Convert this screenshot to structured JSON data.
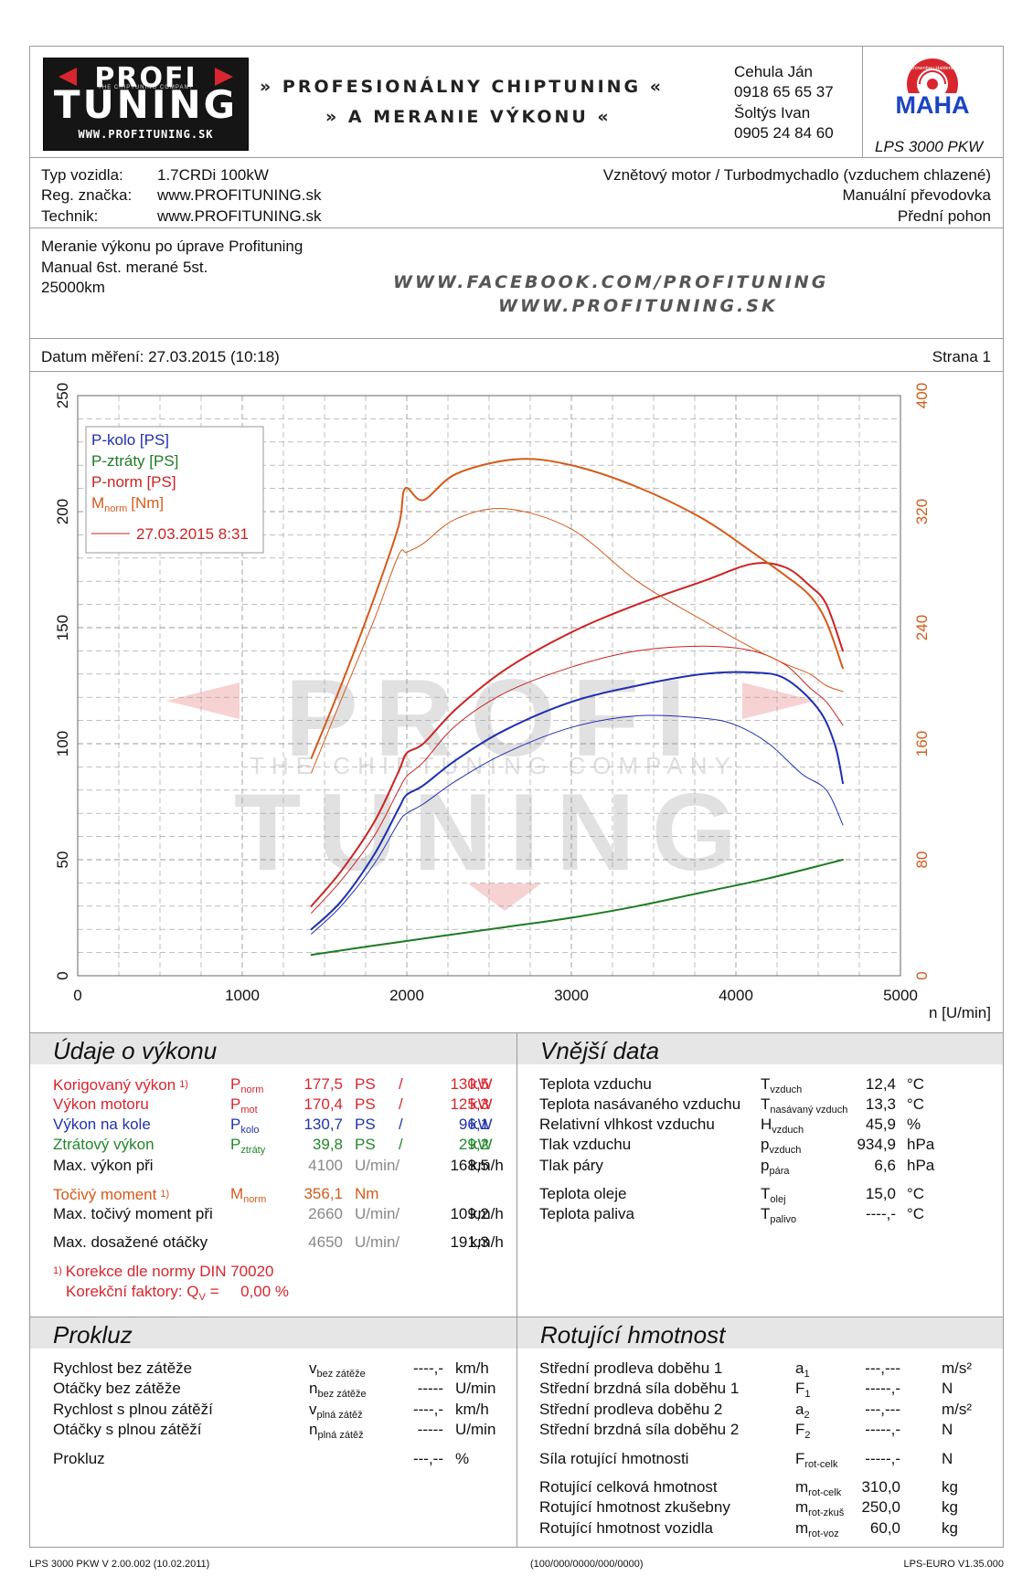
{
  "header": {
    "logo": {
      "line1": "PROFI",
      "line2": "TUNING",
      "tagline": "THE CHIPTUNING COMPANY",
      "url": "WWW.PROFITUNING.SK"
    },
    "slogan_line1": "» PROFESIONÁLNY CHIPTUNING «",
    "slogan_line2": "» A MERANIE VÝKONU «",
    "contacts": [
      "Cehula Ján",
      "0918 65 65 37",
      "Šoltýs Ivan",
      "0905 24 84 60"
    ],
    "maha": {
      "ring_text": "Maschinenbau Haldenwang",
      "brand": "MAHA",
      "model": "LPS 3000 PKW"
    }
  },
  "vehicle": {
    "labels": [
      "Typ vozidla:",
      "Reg. značka:",
      "Technik:"
    ],
    "values": [
      "1.7CRDi 100kW",
      "www.PROFITUNING.sk",
      "www.PROFITUNING.sk"
    ],
    "right": [
      "Vznětový motor / Turbodmychadlo (vzduchem chlazené)",
      "Manuální převodovka",
      "Přední pohon"
    ]
  },
  "notes": {
    "lines": [
      "Meranie výkonu po úprave Profituning",
      "Manual 6st. merané 5st.",
      "25000km"
    ],
    "links": [
      "WWW.FACEBOOK.COM/PROFITUNING",
      "WWW.PROFITUNING.SK"
    ]
  },
  "date_row": {
    "date": "Datum měření: 27.03.2015 (10:18)",
    "page": "Strana 1"
  },
  "colors": {
    "blue": "#1f2fb0",
    "red": "#cc2222",
    "green": "#1f7a22",
    "orange": "#d45a1a",
    "grid": "#888888"
  },
  "chart_data": {
    "type": "line",
    "xlabel": "n [U/min]",
    "xlim": [
      0,
      5000
    ],
    "xticks": [
      0,
      1000,
      2000,
      3000,
      4000,
      5000
    ],
    "ylim_left": [
      0,
      250
    ],
    "yticks_left": [
      0,
      50,
      100,
      150,
      200,
      250
    ],
    "ylim_right": [
      0,
      400
    ],
    "yticks_right": [
      0,
      80,
      160,
      240,
      320,
      400
    ],
    "legend": {
      "position": "top-left",
      "entries": [
        "P-kolo [PS]",
        "P-ztráty [PS]",
        "P-norm [PS]",
        "M",
        "27.03.2015 8:31"
      ],
      "mnorm_sub": "norm",
      "mnorm_unit": "[Nm]"
    },
    "watermark": {
      "line1": "PROFI",
      "line2": "THE CHIPTUNING COMPANY",
      "line3": "TUNING"
    },
    "series": [
      {
        "name": "P-kolo [PS]",
        "axis": "left",
        "color": "#1f2fb0",
        "width": 2,
        "x": [
          1420,
          1600,
          1800,
          1950,
          2000,
          2100,
          2300,
          2600,
          3000,
          3400,
          3800,
          4100,
          4300,
          4500,
          4600,
          4650
        ],
        "y": [
          20,
          32,
          52,
          72,
          78,
          82,
          93,
          106,
          118,
          125,
          130,
          130.7,
          128,
          115,
          100,
          83
        ]
      },
      {
        "name": "P-kolo baseline",
        "axis": "left",
        "color": "#1f2fb0",
        "width": 1,
        "x": [
          1420,
          1600,
          1800,
          1950,
          2000,
          2100,
          2300,
          2600,
          3000,
          3400,
          3800,
          4000,
          4200,
          4400,
          4550,
          4650
        ],
        "y": [
          18,
          30,
          48,
          66,
          70,
          74,
          84,
          96,
          107,
          112,
          111,
          108,
          100,
          87,
          80,
          65
        ]
      },
      {
        "name": "P-ztráty [PS]",
        "axis": "left",
        "color": "#1f7a22",
        "width": 2,
        "x": [
          1420,
          1800,
          2200,
          2600,
          3000,
          3400,
          3800,
          4200,
          4650
        ],
        "y": [
          9,
          13,
          17,
          21,
          25,
          30,
          36,
          42,
          50
        ]
      },
      {
        "name": "P-norm [PS]",
        "axis": "left",
        "color": "#cc2222",
        "width": 2,
        "x": [
          1420,
          1600,
          1800,
          1950,
          2000,
          2100,
          2300,
          2600,
          3000,
          3400,
          3800,
          4100,
          4300,
          4450,
          4550,
          4650
        ],
        "y": [
          30,
          45,
          66,
          88,
          96,
          100,
          115,
          132,
          148,
          160,
          170,
          177.5,
          176,
          168,
          160,
          140
        ]
      },
      {
        "name": "P-norm baseline",
        "axis": "left",
        "color": "#cc2222",
        "width": 1,
        "x": [
          1420,
          1600,
          1800,
          1950,
          2000,
          2100,
          2300,
          2600,
          3000,
          3400,
          3800,
          4100,
          4300,
          4450,
          4550,
          4650
        ],
        "y": [
          27,
          41,
          60,
          80,
          86,
          92,
          108,
          122,
          133,
          140,
          142,
          140,
          134,
          124,
          118,
          108
        ]
      },
      {
        "name": "M norm [Nm]",
        "axis": "right",
        "color": "#d45a1a",
        "width": 2,
        "x": [
          1420,
          1600,
          1800,
          1950,
          1990,
          2100,
          2300,
          2660,
          3000,
          3400,
          3800,
          4100,
          4300,
          4450,
          4550,
          4650
        ],
        "y": [
          150,
          200,
          260,
          310,
          336,
          328,
          346,
          356.1,
          352,
          337,
          315,
          292,
          276,
          262,
          244,
          212
        ]
      },
      {
        "name": "M norm baseline",
        "axis": "right",
        "color": "#d45a1a",
        "width": 1,
        "x": [
          1420,
          1600,
          1800,
          1950,
          2000,
          2100,
          2300,
          2600,
          3000,
          3400,
          3800,
          4100,
          4300,
          4450,
          4550,
          4650
        ],
        "y": [
          140,
          190,
          245,
          290,
          292,
          298,
          315,
          322,
          308,
          272,
          245,
          226,
          215,
          208,
          200,
          196
        ]
      }
    ]
  },
  "power": {
    "title": "Údaje o výkonu",
    "rows": [
      {
        "label": "Korigovaný výkon",
        "note": "1)",
        "sym": "P",
        "sub": "norm",
        "v1": "177,5",
        "u1": "PS",
        "sep": "/",
        "v2": "130,5",
        "u2": "kW",
        "cls": "red"
      },
      {
        "label": "Výkon motoru",
        "note": "",
        "sym": "P",
        "sub": "mot",
        "v1": "170,4",
        "u1": "PS",
        "sep": "/",
        "v2": "125,3",
        "u2": "kW",
        "cls": "red"
      },
      {
        "label": "Výkon na kole",
        "note": "",
        "sym": "P",
        "sub": "kolo",
        "v1": "130,7",
        "u1": "PS",
        "sep": "/",
        "v2": "96,1",
        "u2": "kW",
        "cls": "blue"
      },
      {
        "label": "Ztrátový výkon",
        "note": "",
        "sym": "P",
        "sub": "ztráty",
        "v1": "39,8",
        "u1": "PS",
        "sep": "/",
        "v2": "29,2",
        "u2": "kW",
        "cls": "green"
      }
    ],
    "max_power": {
      "label": "Max. výkon při",
      "rpm": "4100",
      "unit": "U/min/",
      "speed": "168,5",
      "speed_unit": "km/h"
    },
    "torque": {
      "label": "Točivý moment",
      "note": "1)",
      "sym": "M",
      "sub": "norm",
      "value": "356,1",
      "unit": "Nm"
    },
    "max_torque": {
      "label": "Max. točivý moment při",
      "rpm": "2660",
      "unit": "U/min/",
      "speed": "109,2",
      "speed_unit": "km/h"
    },
    "max_rpm": {
      "label": "Max. dosažené otáčky",
      "rpm": "4650",
      "unit": "U/min/",
      "speed": "191,3",
      "speed_unit": "km/h"
    },
    "footnote1_mark": "1)",
    "footnote1": "Korekce dle normy DIN 70020",
    "footnote2_pre": "Korekční faktory: Q",
    "footnote2_sub": "V",
    "footnote2_val": " =     0,00 %"
  },
  "external": {
    "title": "Vnější data",
    "rows": [
      {
        "label": "Teplota vzduchu",
        "sym": "T",
        "sub": "vzduch",
        "value": "12,4",
        "unit": "°C"
      },
      {
        "label": "Teplota nasávaného vzduchu",
        "sym": "T",
        "sub": "nasávaný vzduch",
        "value": "13,3",
        "unit": "°C"
      },
      {
        "label": "Relativní vlhkost vzduchu",
        "sym": "H",
        "sub": "vzduch",
        "value": "45,9",
        "unit": "%"
      },
      {
        "label": "Tlak vzduchu",
        "sym": "p",
        "sub": "vzduch",
        "value": "934,9",
        "unit": "hPa"
      },
      {
        "label": "Tlak páry",
        "sym": "p",
        "sub": "pára",
        "value": "6,6",
        "unit": "hPa"
      }
    ],
    "rows2": [
      {
        "label": "Teplota oleje",
        "sym": "T",
        "sub": "olej",
        "value": "15,0",
        "unit": "°C"
      },
      {
        "label": "Teplota paliva",
        "sym": "T",
        "sub": "palivo",
        "value": "----,-",
        "unit": "°C"
      }
    ]
  },
  "slip": {
    "title": "Prokluz",
    "rows": [
      {
        "label": "Rychlost bez zátěže",
        "sym": "v",
        "sub": "bez zátěže",
        "value": "----,-",
        "unit": "km/h"
      },
      {
        "label": "Otáčky bez zátěže",
        "sym": "n",
        "sub": "bez zátěže",
        "value": "-----",
        "unit": "U/min"
      },
      {
        "label": "Rychlost s plnou zátěží",
        "sym": "v",
        "sub": "plná zátěž",
        "value": "----,-",
        "unit": "km/h"
      },
      {
        "label": "Otáčky s plnou zátěží",
        "sym": "n",
        "sub": "plná zátěž",
        "value": "-----",
        "unit": "U/min"
      }
    ],
    "total": {
      "label": "Prokluz",
      "value": "---,--",
      "unit": "%"
    }
  },
  "rotating": {
    "title": "Rotující hmotnost",
    "rows": [
      {
        "label": "Střední prodleva doběhu 1",
        "sym": "a",
        "sub": "1",
        "value": "---,---",
        "unit": "m/s²"
      },
      {
        "label": "Střední brzdná síla doběhu 1",
        "sym": "F",
        "sub": "1",
        "value": "-----,-",
        "unit": "N"
      },
      {
        "label": "Střední prodleva doběhu 2",
        "sym": "a",
        "sub": "2",
        "value": "---,---",
        "unit": "m/s²"
      },
      {
        "label": "Střední brzdná síla doběhu 2",
        "sym": "F",
        "sub": "2",
        "value": "-----,-",
        "unit": "N"
      }
    ],
    "force": {
      "label": "Síla rotující hmotnosti",
      "sym": "F",
      "sub": "rot-celk",
      "value": "-----,-",
      "unit": "N"
    },
    "rows2": [
      {
        "label": "Rotující celková hmotnost",
        "sym": "m",
        "sub": "rot-celk",
        "value": "310,0",
        "unit": "kg"
      },
      {
        "label": "Rotující hmotnost zkušebny",
        "sym": "m",
        "sub": "rot-zkuš",
        "value": "250,0",
        "unit": "kg"
      },
      {
        "label": "Rotující hmotnost vozidla",
        "sym": "m",
        "sub": "rot-voz",
        "value": "60,0",
        "unit": "kg"
      }
    ]
  },
  "footer": {
    "left": "LPS 3000 PKW V 2.00.002 (10.02.2011)",
    "center": "(100/000/0000/000/0000)",
    "right": "LPS-EURO V1.35.000"
  }
}
